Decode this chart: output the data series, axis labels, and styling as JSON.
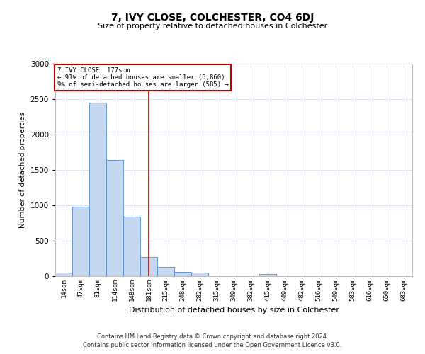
{
  "title": "7, IVY CLOSE, COLCHESTER, CO4 6DJ",
  "subtitle": "Size of property relative to detached houses in Colchester",
  "xlabel": "Distribution of detached houses by size in Colchester",
  "ylabel": "Number of detached properties",
  "property_label": "7 IVY CLOSE: 177sqm",
  "annotation_line1": "← 91% of detached houses are smaller (5,860)",
  "annotation_line2": "9% of semi-detached houses are larger (585) →",
  "categories": [
    "14sqm",
    "47sqm",
    "81sqm",
    "114sqm",
    "148sqm",
    "181sqm",
    "215sqm",
    "248sqm",
    "282sqm",
    "315sqm",
    "349sqm",
    "382sqm",
    "415sqm",
    "449sqm",
    "482sqm",
    "516sqm",
    "549sqm",
    "583sqm",
    "616sqm",
    "650sqm",
    "683sqm"
  ],
  "values": [
    50,
    980,
    2450,
    1640,
    840,
    270,
    130,
    60,
    50,
    0,
    0,
    0,
    30,
    0,
    0,
    0,
    0,
    0,
    0,
    0,
    0
  ],
  "bar_color": "#c5d8f0",
  "bar_edge_color": "#5588cc",
  "vline_color": "#c00000",
  "vline_position": 5.0,
  "annotation_box_color": "#ffffff",
  "annotation_box_edge_color": "#c00000",
  "ylim": [
    0,
    3000
  ],
  "yticks": [
    0,
    500,
    1000,
    1500,
    2000,
    2500,
    3000
  ],
  "grid_color": "#dde5f0",
  "footer_line1": "Contains HM Land Registry data © Crown copyright and database right 2024.",
  "footer_line2": "Contains public sector information licensed under the Open Government Licence v3.0."
}
